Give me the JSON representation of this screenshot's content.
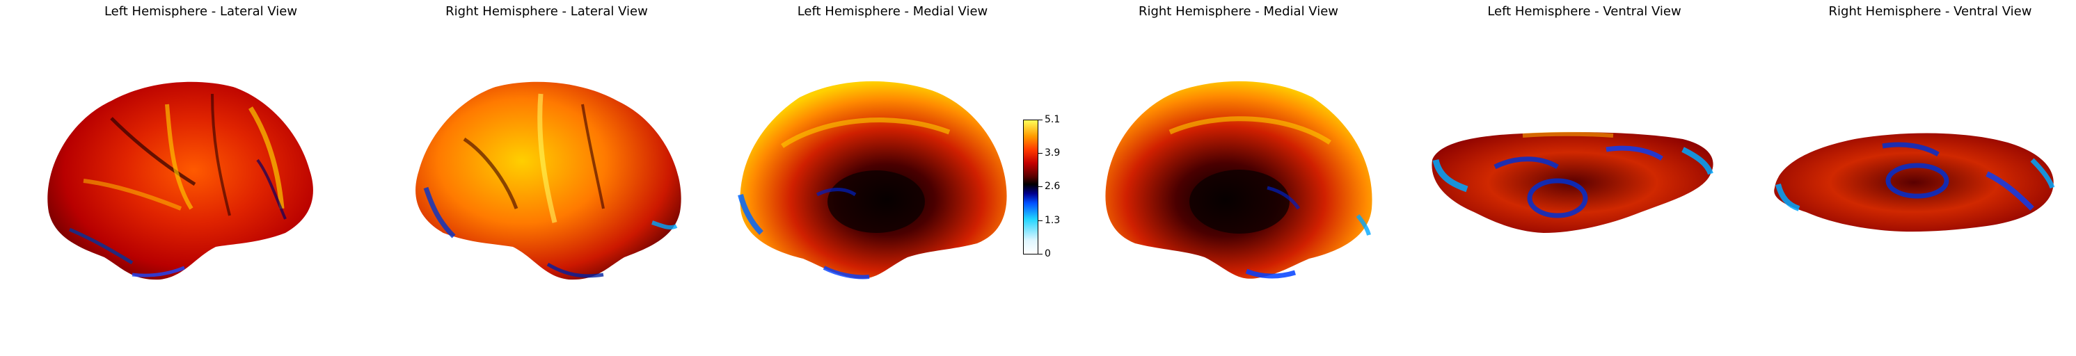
{
  "panels": [
    {
      "title": "Left Hemisphere - Lateral View",
      "icon": "brain-surface-left-lateral-icon"
    },
    {
      "title": "Right Hemisphere - Lateral View",
      "icon": "brain-surface-right-lateral-icon"
    },
    {
      "title": "Left Hemisphere - Medial View",
      "icon": "brain-surface-left-medial-icon"
    },
    {
      "title": "Right Hemisphere - Medial View",
      "icon": "brain-surface-right-medial-icon"
    },
    {
      "title": "Left Hemisphere - Ventral View",
      "icon": "brain-surface-left-ventral-icon"
    },
    {
      "title": "Right Hemisphere - Ventral View",
      "icon": "brain-surface-right-ventral-icon"
    }
  ],
  "colorbar": {
    "ticks": [
      "5.1",
      "3.9",
      "2.6",
      "1.3",
      "0"
    ],
    "min": 0,
    "max": 5.1,
    "colors": [
      "#ffffff",
      "#22d4ff",
      "#0050ff",
      "#000000",
      "#c40000",
      "#ff9a00",
      "#ffff5a"
    ]
  }
}
